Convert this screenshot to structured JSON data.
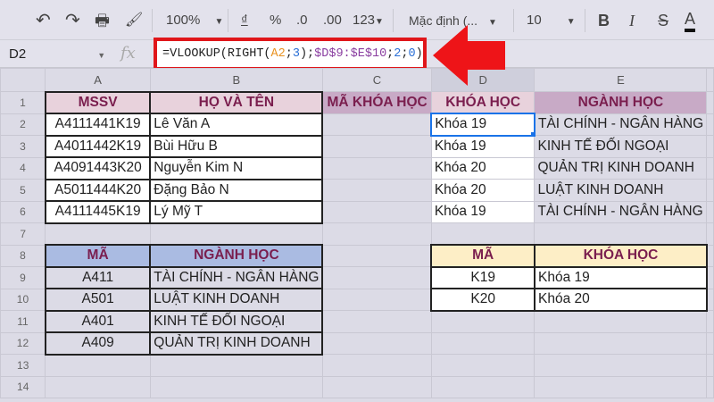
{
  "toolbar": {
    "undo": "↶",
    "redo": "↷",
    "print": "🖶",
    "paint": "🖌",
    "zoom": "100%",
    "currency": "₫",
    "percent": "%",
    "dec_less": ".0",
    "dec_more": ".00",
    "format": "123",
    "font": "Mặc định (...",
    "font_size": "10",
    "bold": "B",
    "italic": "I",
    "strike": "S",
    "text_color": "A"
  },
  "formula_bar": {
    "cell": "D2",
    "fx": "fx",
    "formula_parts": [
      "=VLOOKUP(RIGHT(",
      "A2",
      ";",
      "3",
      ");",
      "$D$9:$E$10",
      ";",
      "2",
      ";",
      "0",
      ")"
    ]
  },
  "columns": [
    "A",
    "B",
    "C",
    "D",
    "E"
  ],
  "rows": [
    "1",
    "2",
    "3",
    "4",
    "5",
    "6",
    "7",
    "8",
    "9",
    "10",
    "11",
    "12",
    "13",
    "14"
  ],
  "table1": {
    "headers": [
      "MSSV",
      "HỌ VÀ TÊN",
      "MÃ KHÓA HỌC",
      "KHÓA HỌC",
      "NGÀNH HỌC"
    ],
    "rows": [
      [
        "A4111441K19",
        "Lê Văn A",
        "",
        "Khóa 19",
        "TÀI CHÍNH - NGÂN HÀNG"
      ],
      [
        "A4011442K19",
        "Bùi Hữu B",
        "",
        "Khóa 19",
        "KINH TẾ ĐỐI NGOẠI"
      ],
      [
        "A4091443K20",
        "Nguyễn Kim N",
        "",
        "Khóa 20",
        "QUẢN TRỊ KINH DOANH"
      ],
      [
        "A5011444K20",
        "Đặng Bảo N",
        "",
        "Khóa 20",
        "LUẬT KINH DOANH"
      ],
      [
        "A4111445K19",
        "Lý Mỹ T",
        "",
        "Khóa 19",
        "TÀI CHÍNH - NGÂN HÀNG"
      ]
    ]
  },
  "table2": {
    "headers": [
      "MÃ",
      "NGÀNH HỌC"
    ],
    "rows": [
      [
        "A411",
        "TÀI CHÍNH - NGÂN HÀNG"
      ],
      [
        "A501",
        "LUẬT KINH DOANH"
      ],
      [
        "A401",
        "KINH TẾ ĐỐI NGOẠI"
      ],
      [
        "A409",
        "QUẢN TRỊ KINH DOANH"
      ]
    ]
  },
  "table3": {
    "headers": [
      "MÃ",
      "KHÓA HỌC"
    ],
    "rows": [
      [
        "K19",
        "Khóa 19"
      ],
      [
        "K20",
        "Khóa 20"
      ]
    ]
  },
  "colors": {
    "highlight": "#e0161a",
    "header_text": "#7a1e4e",
    "selection": "#1a73e8"
  }
}
